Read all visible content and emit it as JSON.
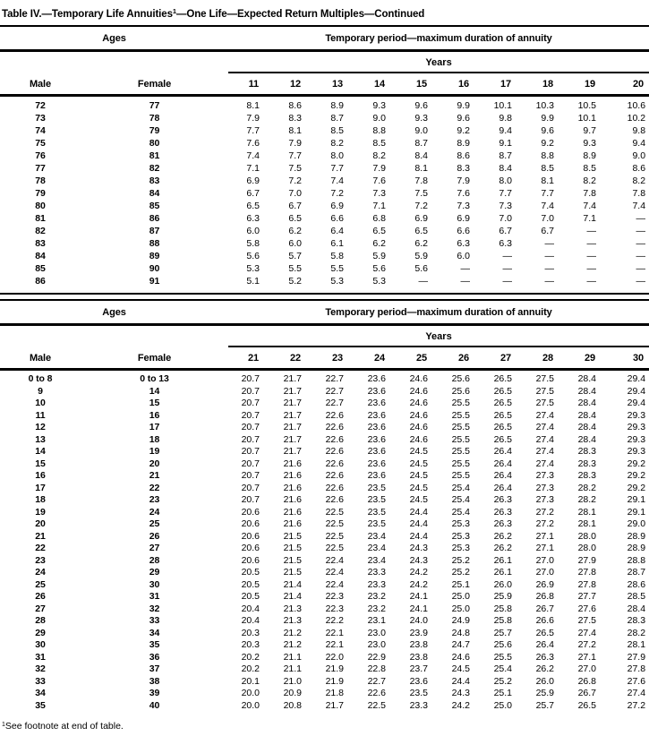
{
  "title": {
    "prefix": "Table IV.—Temporary Life Annuities",
    "footnote_marker": "1",
    "suffix": "—One Life—Expected Return Multiples—Continued"
  },
  "footnote": {
    "marker": "1",
    "text": "See footnote at end of table."
  },
  "tables": [
    {
      "ages_header": "Ages",
      "period_header": "Temporary period—maximum duration of annuity",
      "years_header": "Years",
      "male_header": "Male",
      "female_header": "Female",
      "year_columns": [
        "11",
        "12",
        "13",
        "14",
        "15",
        "16",
        "17",
        "18",
        "19",
        "20"
      ],
      "rows": [
        {
          "male": "72",
          "female": "77",
          "values": [
            "8.1",
            "8.6",
            "8.9",
            "9.3",
            "9.6",
            "9.9",
            "10.1",
            "10.3",
            "10.5",
            "10.6"
          ]
        },
        {
          "male": "73",
          "female": "78",
          "values": [
            "7.9",
            "8.3",
            "8.7",
            "9.0",
            "9.3",
            "9.6",
            "9.8",
            "9.9",
            "10.1",
            "10.2"
          ]
        },
        {
          "male": "74",
          "female": "79",
          "values": [
            "7.7",
            "8.1",
            "8.5",
            "8.8",
            "9.0",
            "9.2",
            "9.4",
            "9.6",
            "9.7",
            "9.8"
          ]
        },
        {
          "male": "75",
          "female": "80",
          "values": [
            "7.6",
            "7.9",
            "8.2",
            "8.5",
            "8.7",
            "8.9",
            "9.1",
            "9.2",
            "9.3",
            "9.4"
          ]
        },
        {
          "male": "76",
          "female": "81",
          "values": [
            "7.4",
            "7.7",
            "8.0",
            "8.2",
            "8.4",
            "8.6",
            "8.7",
            "8.8",
            "8.9",
            "9.0"
          ]
        },
        {
          "male": "77",
          "female": "82",
          "values": [
            "7.1",
            "7.5",
            "7.7",
            "7.9",
            "8.1",
            "8.3",
            "8.4",
            "8.5",
            "8.5",
            "8.6"
          ]
        },
        {
          "male": "78",
          "female": "83",
          "values": [
            "6.9",
            "7.2",
            "7.4",
            "7.6",
            "7.8",
            "7.9",
            "8.0",
            "8.1",
            "8.2",
            "8.2"
          ]
        },
        {
          "male": "79",
          "female": "84",
          "values": [
            "6.7",
            "7.0",
            "7.2",
            "7.3",
            "7.5",
            "7.6",
            "7.7",
            "7.7",
            "7.8",
            "7.8"
          ]
        },
        {
          "male": "80",
          "female": "85",
          "values": [
            "6.5",
            "6.7",
            "6.9",
            "7.1",
            "7.2",
            "7.3",
            "7.3",
            "7.4",
            "7.4",
            "7.4"
          ]
        },
        {
          "male": "81",
          "female": "86",
          "values": [
            "6.3",
            "6.5",
            "6.6",
            "6.8",
            "6.9",
            "6.9",
            "7.0",
            "7.0",
            "7.1",
            "—"
          ]
        },
        {
          "male": "82",
          "female": "87",
          "values": [
            "6.0",
            "6.2",
            "6.4",
            "6.5",
            "6.5",
            "6.6",
            "6.7",
            "6.7",
            "—",
            "—"
          ]
        },
        {
          "male": "83",
          "female": "88",
          "values": [
            "5.8",
            "6.0",
            "6.1",
            "6.2",
            "6.2",
            "6.3",
            "6.3",
            "—",
            "—",
            "—"
          ]
        },
        {
          "male": "84",
          "female": "89",
          "values": [
            "5.6",
            "5.7",
            "5.8",
            "5.9",
            "5.9",
            "6.0",
            "—",
            "—",
            "—",
            "—"
          ]
        },
        {
          "male": "85",
          "female": "90",
          "values": [
            "5.3",
            "5.5",
            "5.5",
            "5.6",
            "5.6",
            "—",
            "—",
            "—",
            "—",
            "—"
          ]
        },
        {
          "male": "86",
          "female": "91",
          "values": [
            "5.1",
            "5.2",
            "5.3",
            "5.3",
            "—",
            "—",
            "—",
            "—",
            "—",
            "—"
          ]
        }
      ]
    },
    {
      "ages_header": "Ages",
      "period_header": "Temporary period—maximum duration of annuity",
      "years_header": "Years",
      "male_header": "Male",
      "female_header": "Female",
      "year_columns": [
        "21",
        "22",
        "23",
        "24",
        "25",
        "26",
        "27",
        "28",
        "29",
        "30"
      ],
      "rows": [
        {
          "male": "0 to 8",
          "female": "0 to 13",
          "values": [
            "20.7",
            "21.7",
            "22.7",
            "23.6",
            "24.6",
            "25.6",
            "26.5",
            "27.5",
            "28.4",
            "29.4"
          ]
        },
        {
          "male": "9",
          "female": "14",
          "values": [
            "20.7",
            "21.7",
            "22.7",
            "23.6",
            "24.6",
            "25.6",
            "26.5",
            "27.5",
            "28.4",
            "29.4"
          ]
        },
        {
          "male": "10",
          "female": "15",
          "values": [
            "20.7",
            "21.7",
            "22.7",
            "23.6",
            "24.6",
            "25.5",
            "26.5",
            "27.5",
            "28.4",
            "29.4"
          ]
        },
        {
          "male": "11",
          "female": "16",
          "values": [
            "20.7",
            "21.7",
            "22.6",
            "23.6",
            "24.6",
            "25.5",
            "26.5",
            "27.4",
            "28.4",
            "29.3"
          ]
        },
        {
          "male": "12",
          "female": "17",
          "values": [
            "20.7",
            "21.7",
            "22.6",
            "23.6",
            "24.6",
            "25.5",
            "26.5",
            "27.4",
            "28.4",
            "29.3"
          ]
        },
        {
          "male": "13",
          "female": "18",
          "values": [
            "20.7",
            "21.7",
            "22.6",
            "23.6",
            "24.6",
            "25.5",
            "26.5",
            "27.4",
            "28.4",
            "29.3"
          ]
        },
        {
          "male": "14",
          "female": "19",
          "values": [
            "20.7",
            "21.7",
            "22.6",
            "23.6",
            "24.5",
            "25.5",
            "26.4",
            "27.4",
            "28.3",
            "29.3"
          ]
        },
        {
          "male": "15",
          "female": "20",
          "values": [
            "20.7",
            "21.6",
            "22.6",
            "23.6",
            "24.5",
            "25.5",
            "26.4",
            "27.4",
            "28.3",
            "29.2"
          ]
        },
        {
          "male": "16",
          "female": "21",
          "values": [
            "20.7",
            "21.6",
            "22.6",
            "23.6",
            "24.5",
            "25.5",
            "26.4",
            "27.3",
            "28.3",
            "29.2"
          ]
        },
        {
          "male": "17",
          "female": "22",
          "values": [
            "20.7",
            "21.6",
            "22.6",
            "23.5",
            "24.5",
            "25.4",
            "26.4",
            "27.3",
            "28.2",
            "29.2"
          ]
        },
        {
          "male": "18",
          "female": "23",
          "values": [
            "20.7",
            "21.6",
            "22.6",
            "23.5",
            "24.5",
            "25.4",
            "26.3",
            "27.3",
            "28.2",
            "29.1"
          ]
        },
        {
          "male": "19",
          "female": "24",
          "values": [
            "20.6",
            "21.6",
            "22.5",
            "23.5",
            "24.4",
            "25.4",
            "26.3",
            "27.2",
            "28.1",
            "29.1"
          ]
        },
        {
          "male": "20",
          "female": "25",
          "values": [
            "20.6",
            "21.6",
            "22.5",
            "23.5",
            "24.4",
            "25.3",
            "26.3",
            "27.2",
            "28.1",
            "29.0"
          ]
        },
        {
          "male": "21",
          "female": "26",
          "values": [
            "20.6",
            "21.5",
            "22.5",
            "23.4",
            "24.4",
            "25.3",
            "26.2",
            "27.1",
            "28.0",
            "28.9"
          ]
        },
        {
          "male": "22",
          "female": "27",
          "values": [
            "20.6",
            "21.5",
            "22.5",
            "23.4",
            "24.3",
            "25.3",
            "26.2",
            "27.1",
            "28.0",
            "28.9"
          ]
        },
        {
          "male": "23",
          "female": "28",
          "values": [
            "20.6",
            "21.5",
            "22.4",
            "23.4",
            "24.3",
            "25.2",
            "26.1",
            "27.0",
            "27.9",
            "28.8"
          ]
        },
        {
          "male": "24",
          "female": "29",
          "values": [
            "20.5",
            "21.5",
            "22.4",
            "23.3",
            "24.2",
            "25.2",
            "26.1",
            "27.0",
            "27.8",
            "28.7"
          ]
        },
        {
          "male": "25",
          "female": "30",
          "values": [
            "20.5",
            "21.4",
            "22.4",
            "23.3",
            "24.2",
            "25.1",
            "26.0",
            "26.9",
            "27.8",
            "28.6"
          ]
        },
        {
          "male": "26",
          "female": "31",
          "values": [
            "20.5",
            "21.4",
            "22.3",
            "23.2",
            "24.1",
            "25.0",
            "25.9",
            "26.8",
            "27.7",
            "28.5"
          ]
        },
        {
          "male": "27",
          "female": "32",
          "values": [
            "20.4",
            "21.3",
            "22.3",
            "23.2",
            "24.1",
            "25.0",
            "25.8",
            "26.7",
            "27.6",
            "28.4"
          ]
        },
        {
          "male": "28",
          "female": "33",
          "values": [
            "20.4",
            "21.3",
            "22.2",
            "23.1",
            "24.0",
            "24.9",
            "25.8",
            "26.6",
            "27.5",
            "28.3"
          ]
        },
        {
          "male": "29",
          "female": "34",
          "values": [
            "20.3",
            "21.2",
            "22.1",
            "23.0",
            "23.9",
            "24.8",
            "25.7",
            "26.5",
            "27.4",
            "28.2"
          ]
        },
        {
          "male": "30",
          "female": "35",
          "values": [
            "20.3",
            "21.2",
            "22.1",
            "23.0",
            "23.8",
            "24.7",
            "25.6",
            "26.4",
            "27.2",
            "28.1"
          ]
        },
        {
          "male": "31",
          "female": "36",
          "values": [
            "20.2",
            "21.1",
            "22.0",
            "22.9",
            "23.8",
            "24.6",
            "25.5",
            "26.3",
            "27.1",
            "27.9"
          ]
        },
        {
          "male": "32",
          "female": "37",
          "values": [
            "20.2",
            "21.1",
            "21.9",
            "22.8",
            "23.7",
            "24.5",
            "25.4",
            "26.2",
            "27.0",
            "27.8"
          ]
        },
        {
          "male": "33",
          "female": "38",
          "values": [
            "20.1",
            "21.0",
            "21.9",
            "22.7",
            "23.6",
            "24.4",
            "25.2",
            "26.0",
            "26.8",
            "27.6"
          ]
        },
        {
          "male": "34",
          "female": "39",
          "values": [
            "20.0",
            "20.9",
            "21.8",
            "22.6",
            "23.5",
            "24.3",
            "25.1",
            "25.9",
            "26.7",
            "27.4"
          ]
        },
        {
          "male": "35",
          "female": "40",
          "values": [
            "20.0",
            "20.8",
            "21.7",
            "22.5",
            "23.3",
            "24.2",
            "25.0",
            "25.7",
            "26.5",
            "27.2"
          ]
        }
      ]
    }
  ]
}
